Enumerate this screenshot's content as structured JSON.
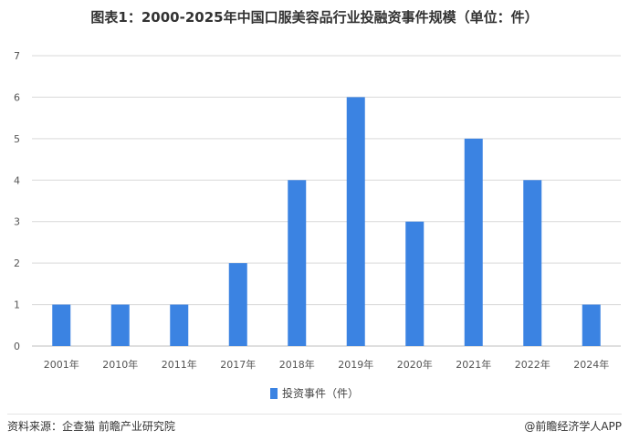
{
  "title": "图表1：2000-2025年中国口服美容品行业投融资事件规模（单位：件）",
  "footer": {
    "source": "资料来源：企查猫 前瞻产业研究院",
    "brand": "@前瞻经济学人APP"
  },
  "colors": {
    "bar": "#3b83e2",
    "grid": "#d9d9d9",
    "axis": "#bfbfbf"
  },
  "chart_data": {
    "type": "bar",
    "title": "图表1：2000-2025年中国口服美容品行业投融资事件规模（单位：件）",
    "categories": [
      "2001年",
      "2010年",
      "2011年",
      "2017年",
      "2018年",
      "2019年",
      "2020年",
      "2021年",
      "2022年",
      "2024年"
    ],
    "series": [
      {
        "name": "投资事件（件）",
        "values": [
          1,
          1,
          1,
          2,
          4,
          6,
          3,
          5,
          4,
          1
        ]
      }
    ],
    "ylim": [
      0,
      7
    ],
    "yticks": [
      0,
      1,
      2,
      3,
      4,
      5,
      6,
      7
    ],
    "grid": true,
    "legend": "bottom-center"
  }
}
